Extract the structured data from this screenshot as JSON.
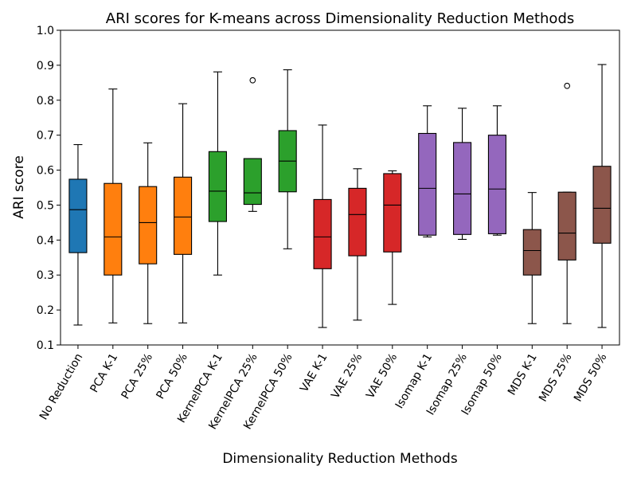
{
  "chart_data": {
    "type": "boxplot",
    "title": "ARI scores for K-means across Dimensionality Reduction Methods",
    "xlabel": "Dimensionality Reduction Methods",
    "ylabel": "ARI score",
    "ylim": [
      0.1,
      1.0
    ],
    "yticks": [
      "0.1",
      "0.2",
      "0.3",
      "0.4",
      "0.5",
      "0.6",
      "0.7",
      "0.8",
      "0.9",
      "1.0"
    ],
    "grid": false,
    "categories": [
      "No Reduction",
      "PCA K-1",
      "PCA 25%",
      "PCA 50%",
      "KernelPCA K-1",
      "KernelPCA 25%",
      "KernelPCA 50%",
      "VAE K-1",
      "VAE 25%",
      "VAE 50%",
      "Isomap K-1",
      "Isomap 25%",
      "Isomap 50%",
      "MDS K-1",
      "MDS 25%",
      "MDS 50%"
    ],
    "colors": {
      "No Reduction": "#1f77b4",
      "PCA": "#ff7f0e",
      "KernelPCA": "#2ca02c",
      "VAE": "#d62728",
      "Isomap": "#9467bd",
      "MDS": "#8c564b"
    },
    "boxes": [
      {
        "label": "No Reduction",
        "color": "#1f77b4",
        "whisker_low": 0.157,
        "q1": 0.364,
        "median": 0.487,
        "q3": 0.574,
        "whisker_high": 0.673,
        "outliers": []
      },
      {
        "label": "PCA K-1",
        "color": "#ff7f0e",
        "whisker_low": 0.163,
        "q1": 0.3,
        "median": 0.409,
        "q3": 0.562,
        "whisker_high": 0.832,
        "outliers": []
      },
      {
        "label": "PCA 25%",
        "color": "#ff7f0e",
        "whisker_low": 0.161,
        "q1": 0.332,
        "median": 0.45,
        "q3": 0.553,
        "whisker_high": 0.678,
        "outliers": []
      },
      {
        "label": "PCA 50%",
        "color": "#ff7f0e",
        "whisker_low": 0.163,
        "q1": 0.359,
        "median": 0.466,
        "q3": 0.58,
        "whisker_high": 0.79,
        "outliers": []
      },
      {
        "label": "KernelPCA K-1",
        "color": "#2ca02c",
        "whisker_low": 0.3,
        "q1": 0.453,
        "median": 0.54,
        "q3": 0.653,
        "whisker_high": 0.881,
        "outliers": []
      },
      {
        "label": "KernelPCA 25%",
        "color": "#2ca02c",
        "whisker_low": 0.482,
        "q1": 0.502,
        "median": 0.535,
        "q3": 0.633,
        "whisker_high": 0.633,
        "outliers": [
          0.857
        ]
      },
      {
        "label": "KernelPCA 50%",
        "color": "#2ca02c",
        "whisker_low": 0.375,
        "q1": 0.538,
        "median": 0.626,
        "q3": 0.713,
        "whisker_high": 0.887,
        "outliers": []
      },
      {
        "label": "VAE K-1",
        "color": "#d62728",
        "whisker_low": 0.15,
        "q1": 0.318,
        "median": 0.409,
        "q3": 0.516,
        "whisker_high": 0.729,
        "outliers": []
      },
      {
        "label": "VAE 25%",
        "color": "#d62728",
        "whisker_low": 0.171,
        "q1": 0.355,
        "median": 0.473,
        "q3": 0.548,
        "whisker_high": 0.604,
        "outliers": []
      },
      {
        "label": "VAE 50%",
        "color": "#d62728",
        "whisker_low": 0.216,
        "q1": 0.366,
        "median": 0.5,
        "q3": 0.59,
        "whisker_high": 0.598,
        "outliers": []
      },
      {
        "label": "Isomap K-1",
        "color": "#9467bd",
        "whisker_low": 0.409,
        "q1": 0.414,
        "median": 0.548,
        "q3": 0.705,
        "whisker_high": 0.784,
        "outliers": []
      },
      {
        "label": "Isomap 25%",
        "color": "#9467bd",
        "whisker_low": 0.402,
        "q1": 0.416,
        "median": 0.532,
        "q3": 0.679,
        "whisker_high": 0.777,
        "outliers": []
      },
      {
        "label": "Isomap 50%",
        "color": "#9467bd",
        "whisker_low": 0.414,
        "q1": 0.418,
        "median": 0.546,
        "q3": 0.7,
        "whisker_high": 0.784,
        "outliers": []
      },
      {
        "label": "MDS K-1",
        "color": "#8c564b",
        "whisker_low": 0.161,
        "q1": 0.3,
        "median": 0.37,
        "q3": 0.43,
        "whisker_high": 0.536,
        "outliers": []
      },
      {
        "label": "MDS 25%",
        "color": "#8c564b",
        "whisker_low": 0.161,
        "q1": 0.343,
        "median": 0.42,
        "q3": 0.537,
        "whisker_high": 0.537,
        "outliers": [
          0.841
        ]
      },
      {
        "label": "MDS 50%",
        "color": "#8c564b",
        "whisker_low": 0.15,
        "q1": 0.391,
        "median": 0.491,
        "q3": 0.611,
        "whisker_high": 0.902,
        "outliers": []
      }
    ]
  }
}
